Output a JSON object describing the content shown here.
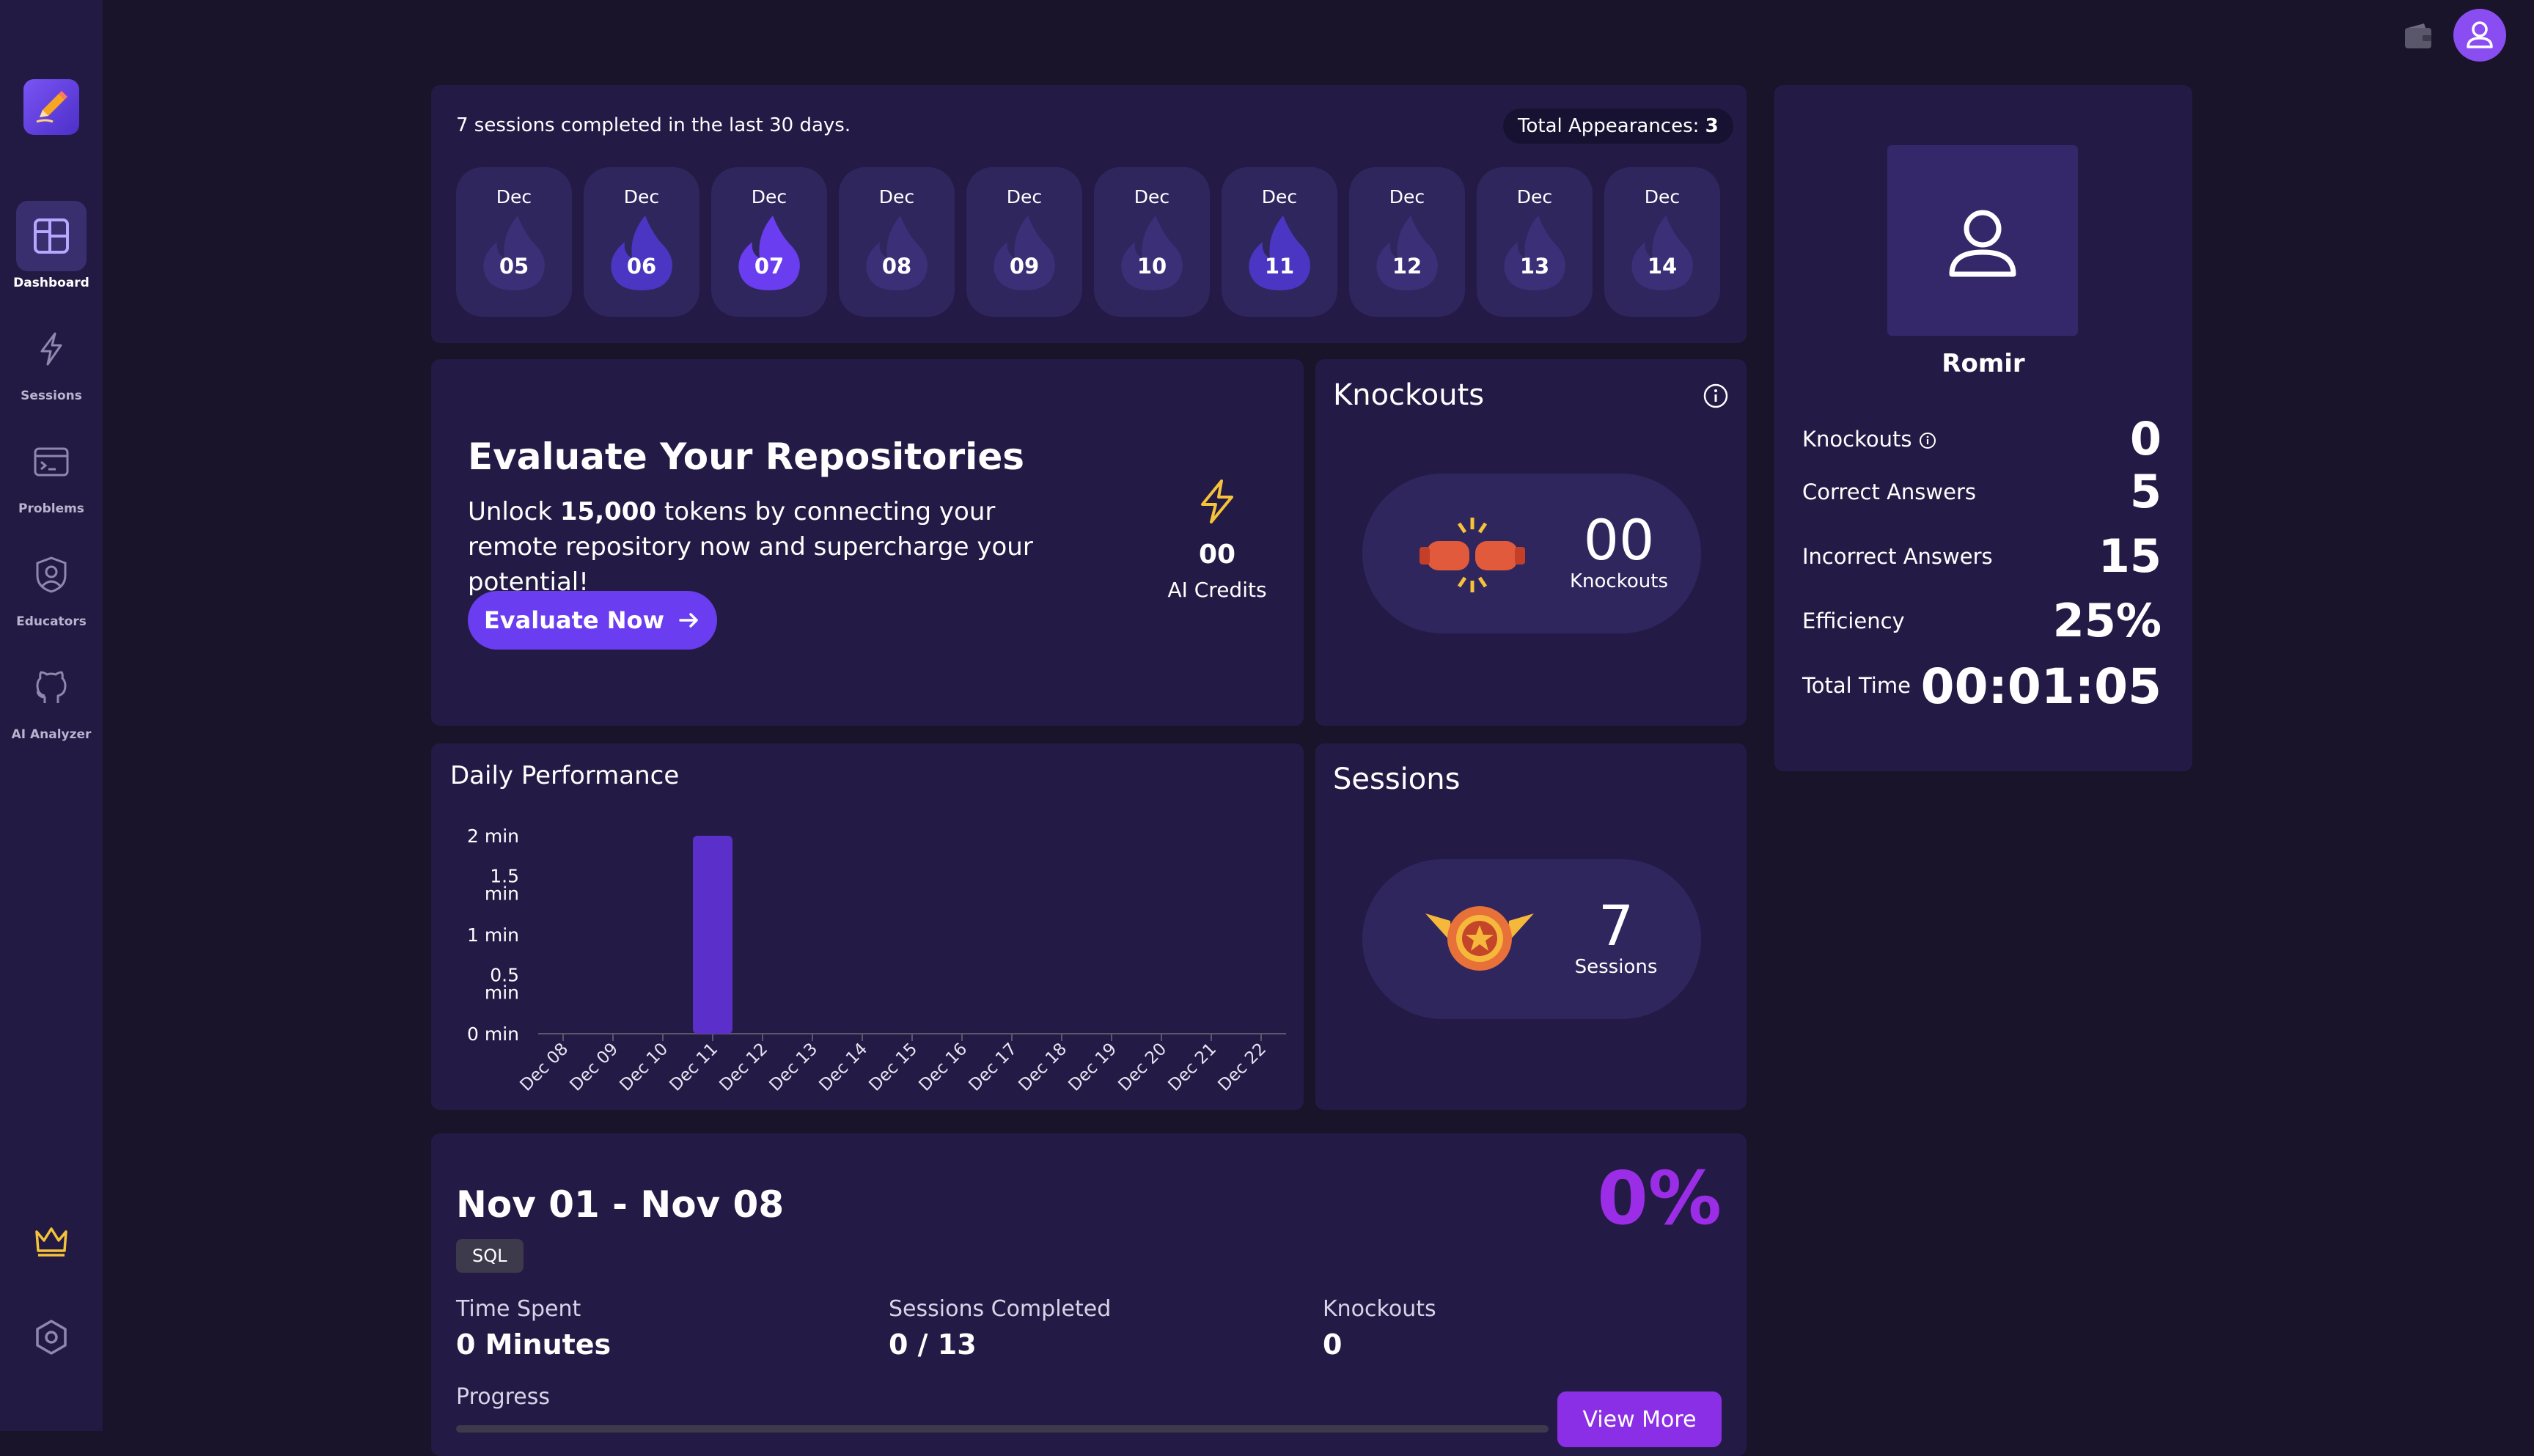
{
  "sidebar": {
    "items": [
      {
        "label": "Dashboard",
        "icon": "dashboard-icon",
        "active": true
      },
      {
        "label": "Sessions",
        "icon": "lightning-icon"
      },
      {
        "label": "Problems",
        "icon": "terminal-icon"
      },
      {
        "label": "Educators",
        "icon": "user-shield-icon"
      },
      {
        "label": "AI Analyzer",
        "icon": "github-icon"
      }
    ],
    "bottom_icons": [
      "crown-icon",
      "settings-icon"
    ]
  },
  "streak": {
    "summary": "7 sessions completed in the last 30 days.",
    "total_label": "Total Appearances:",
    "total_value": "3",
    "days": [
      {
        "month": "Dec",
        "day": "05",
        "active": false
      },
      {
        "month": "Dec",
        "day": "06",
        "active": true
      },
      {
        "month": "Dec",
        "day": "07",
        "active": true,
        "highlight": true
      },
      {
        "month": "Dec",
        "day": "08",
        "active": false
      },
      {
        "month": "Dec",
        "day": "09",
        "active": false
      },
      {
        "month": "Dec",
        "day": "10",
        "active": false
      },
      {
        "month": "Dec",
        "day": "11",
        "active": true
      },
      {
        "month": "Dec",
        "day": "12",
        "active": false
      },
      {
        "month": "Dec",
        "day": "13",
        "active": false
      },
      {
        "month": "Dec",
        "day": "14",
        "active": false
      }
    ]
  },
  "evaluate": {
    "title": "Evaluate Your Repositories",
    "desc_pre": "Unlock ",
    "desc_bold": "15,000",
    "desc_post": " tokens by connecting your remote repository now and supercharge your potential!",
    "button": "Evaluate Now",
    "credits_value": "00",
    "credits_label": "AI Credits"
  },
  "knockouts_card": {
    "title": "Knockouts",
    "value": "00",
    "label": "Knockouts"
  },
  "sessions_card": {
    "title": "Sessions",
    "value": "7",
    "label": "Sessions"
  },
  "performance": {
    "title": "Daily Performance"
  },
  "chart_data": {
    "type": "bar",
    "title": "Daily Performance",
    "categories": [
      "Dec 08",
      "Dec 09",
      "Dec 10",
      "Dec 11",
      "Dec 12",
      "Dec 13",
      "Dec 14",
      "Dec 15",
      "Dec 16",
      "Dec 17",
      "Dec 18",
      "Dec 19",
      "Dec 20",
      "Dec 21",
      "Dec 22"
    ],
    "values": [
      0,
      0,
      0,
      2,
      0,
      0,
      0,
      0,
      0,
      0,
      0,
      0,
      0,
      0,
      0
    ],
    "y_ticks": [
      "0 min",
      "0.5 min",
      "1 min",
      "1.5 min",
      "2 min"
    ],
    "ylim": [
      0,
      2
    ],
    "grid": false,
    "bar_color": "#5b2fc9"
  },
  "profile": {
    "name": "Romir",
    "stats": [
      {
        "label": "Knockouts",
        "value": "0",
        "info": true
      },
      {
        "label": "Correct Answers",
        "value": "5"
      },
      {
        "label": "Incorrect Answers",
        "value": "15"
      },
      {
        "label": "Efficiency",
        "value": "25%"
      },
      {
        "label": "Total Time",
        "value": "00:01:05"
      }
    ]
  },
  "week": {
    "title": "Nov 01 - Nov 08",
    "tag": "SQL",
    "percent": "0%",
    "time_label": "Time Spent",
    "time_value": "0 Minutes",
    "sessions_label": "Sessions Completed",
    "sessions_value": "0 / 13",
    "knockouts_label": "Knockouts",
    "knockouts_value": "0",
    "progress_label": "Progress",
    "progress": 0,
    "button": "View More"
  },
  "colors": {
    "bg": "#191429",
    "card": "#231b45",
    "accent": "#6a3df0",
    "flame": "#4a36c2",
    "percent": "#9b2de6"
  }
}
